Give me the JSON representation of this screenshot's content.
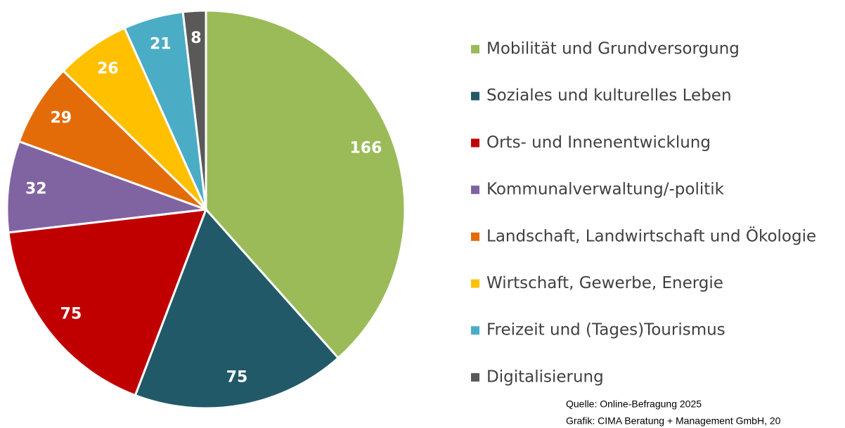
{
  "chart_data": {
    "type": "pie",
    "categories": [
      "Mobilität und Grundversorgung",
      "Soziales und kulturelles Leben",
      "Orts- und Innenentwicklung",
      "Kommunalverwaltung/-politik",
      "Landschaft, Landwirtschaft und Ökologie",
      "Wirtschaft, Gewerbe, Energie",
      "Freizeit und (Tages)Tourismus",
      "Digitalisierung"
    ],
    "values": [
      166,
      75,
      75,
      32,
      29,
      26,
      21,
      8
    ],
    "colors": [
      "#9bbb59",
      "#215968",
      "#c00000",
      "#8064a2",
      "#e36c09",
      "#ffc000",
      "#4bacc6",
      "#595959"
    ],
    "legend": "right",
    "source": [
      "Quelle: Online-Befragung 2025",
      "Grafik: CIMA Beratung + Management GmbH, 20"
    ]
  }
}
